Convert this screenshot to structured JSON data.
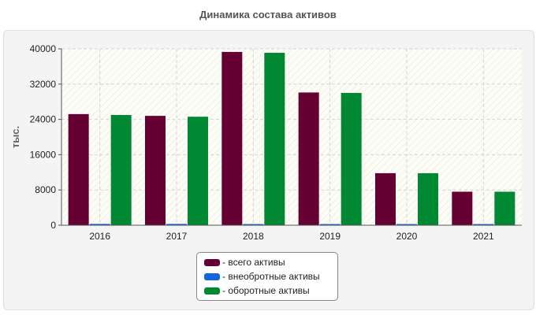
{
  "chart_data": {
    "type": "bar",
    "title": "Динамика состава активов",
    "ylabel": "тыс.",
    "xlabel": "",
    "ylim": [
      0,
      40000
    ],
    "yticks": [
      0,
      8000,
      16000,
      24000,
      32000,
      40000
    ],
    "categories": [
      "2016",
      "2017",
      "2018",
      "2019",
      "2020",
      "2021"
    ],
    "series": [
      {
        "name": "- всего активы",
        "color": "#660033",
        "values": [
          25200,
          24800,
          39300,
          30100,
          11800,
          7600
        ]
      },
      {
        "name": "- внеобротные активы",
        "color": "#1166dd",
        "values": [
          300,
          300,
          150,
          150,
          150,
          150
        ]
      },
      {
        "name": "- оборотные активы",
        "color": "#008833",
        "values": [
          25000,
          24600,
          39100,
          30000,
          11800,
          7600
        ]
      }
    ],
    "grid": true,
    "legend_position": "bottom"
  }
}
